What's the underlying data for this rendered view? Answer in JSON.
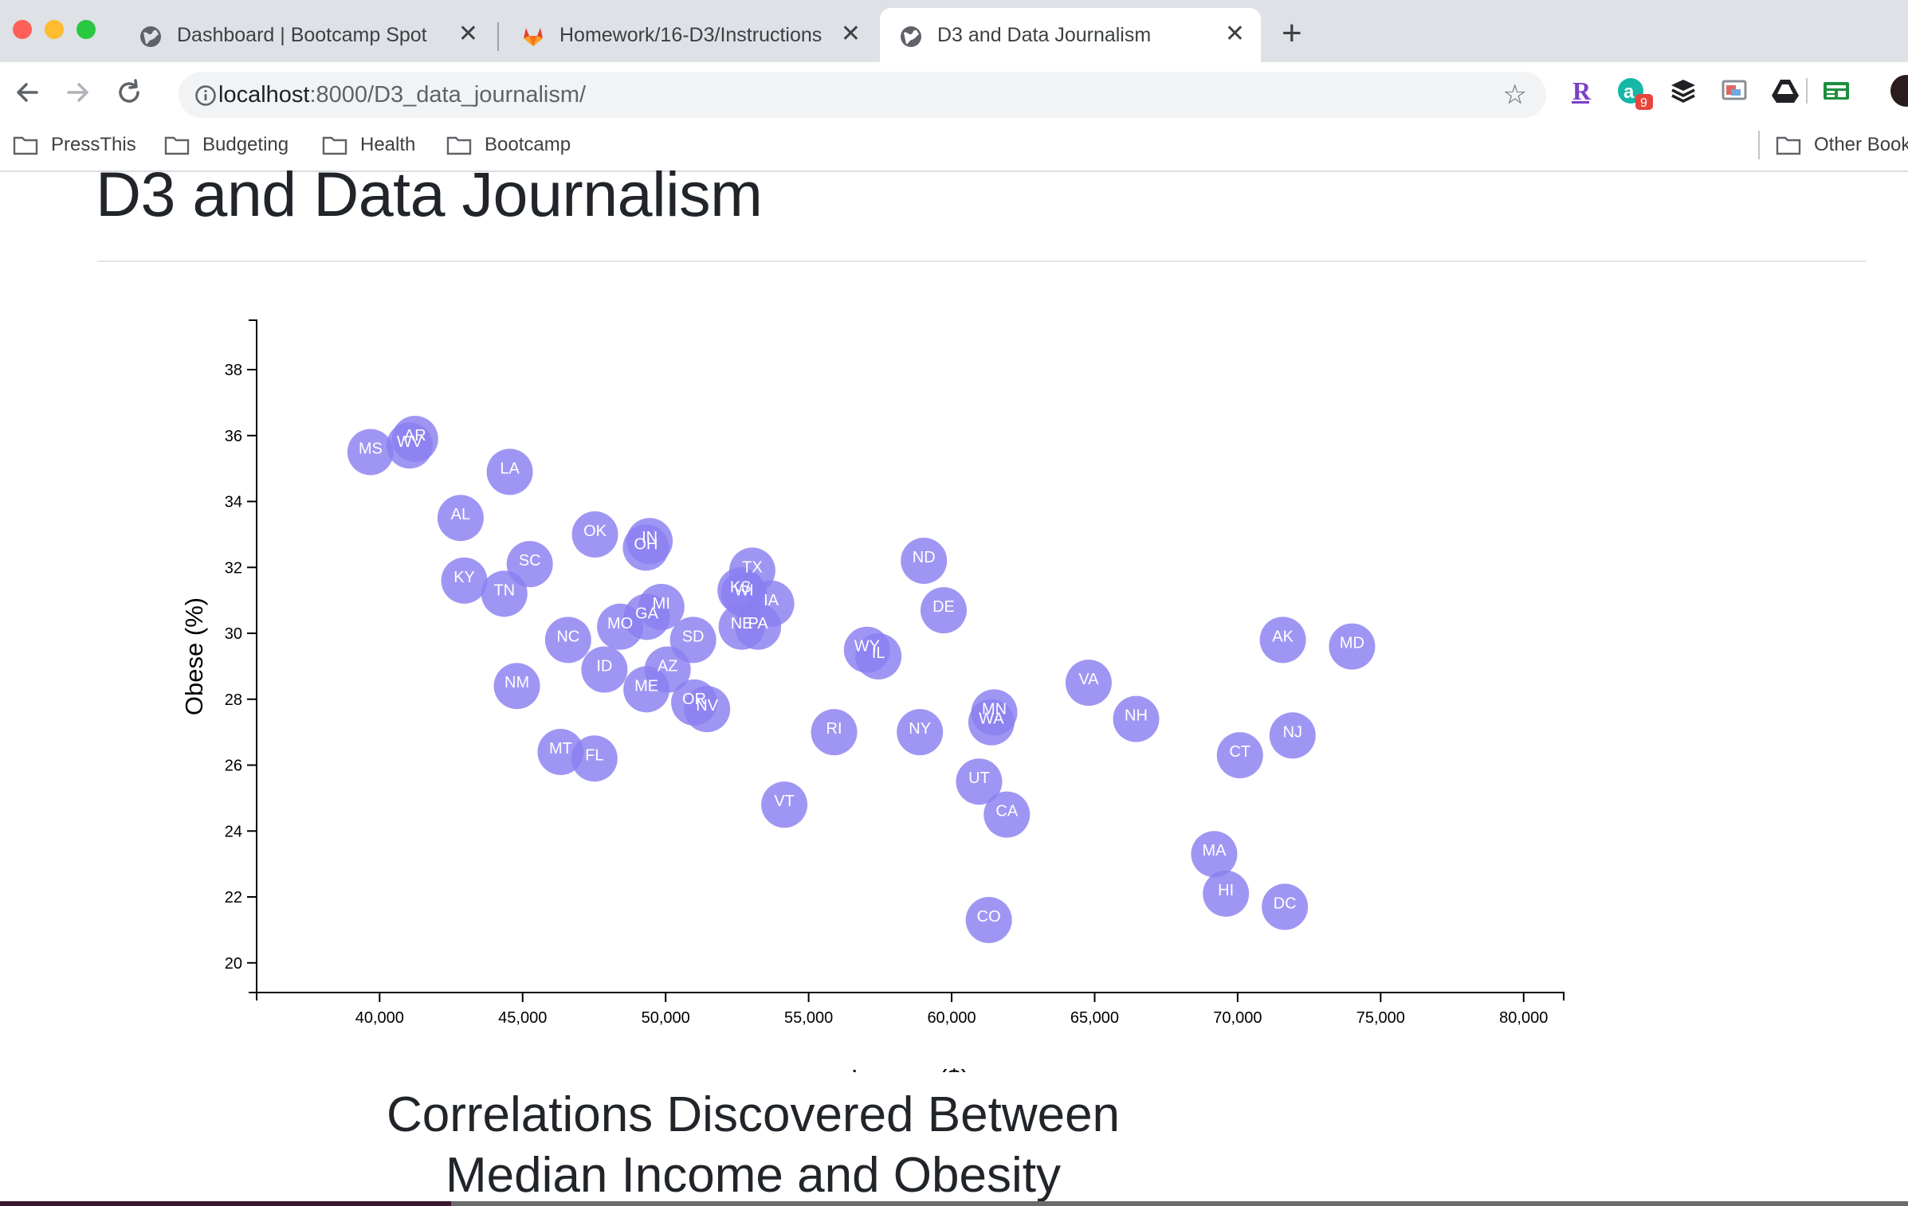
{
  "browser": {
    "tabs": [
      {
        "title": "Dashboard | Bootcamp Spot",
        "icon": "globe-icon",
        "active": false
      },
      {
        "title": "Homework/16-D3/Instructions",
        "icon": "gitlab-icon",
        "active": false
      },
      {
        "title": "D3 and Data Journalism",
        "icon": "globe-icon",
        "active": true
      }
    ],
    "close_glyph": "✕",
    "new_tab_glyph": "+",
    "url_host": "localhost",
    "url_path": ":8000/D3_data_journalism/",
    "star_glyph": "☆",
    "extension_badge": "9",
    "bookmarks": [
      "PressThis",
      "Budgeting",
      "Health",
      "Bootcamp"
    ],
    "other_bookmarks": "Other Bookmarks",
    "colors": {
      "chrome": "#dee1e6",
      "omnibox": "#f1f3f4",
      "bubble": "#8a7ff0"
    }
  },
  "page": {
    "heading": "D3 and Data Journalism",
    "sub_heading_line1": "Correlations Discovered Between",
    "sub_heading_line2": "Median Income and Obesity"
  },
  "chart_data": {
    "type": "scatter",
    "title": "",
    "xlabel": "Income ($)",
    "ylabel": "Obese (%)",
    "xlim": [
      35700,
      81400
    ],
    "ylim": [
      19.1,
      39.5
    ],
    "xticks": [
      40000,
      45000,
      50000,
      55000,
      60000,
      65000,
      70000,
      75000,
      80000
    ],
    "xtick_labels": [
      "40,000",
      "45,000",
      "50,000",
      "55,000",
      "60,000",
      "65,000",
      "70,000",
      "75,000",
      "80,000"
    ],
    "yticks": [
      20,
      22,
      24,
      26,
      28,
      30,
      32,
      34,
      36,
      38
    ],
    "points": [
      {
        "abbr": "MS",
        "x": 39680,
        "y": 35.5
      },
      {
        "abbr": "WV",
        "x": 41050,
        "y": 35.7
      },
      {
        "abbr": "AR",
        "x": 41240,
        "y": 35.9
      },
      {
        "abbr": "LA",
        "x": 44550,
        "y": 34.9
      },
      {
        "abbr": "AL",
        "x": 42830,
        "y": 33.5
      },
      {
        "abbr": "OK",
        "x": 47530,
        "y": 33.0
      },
      {
        "abbr": "OH",
        "x": 49310,
        "y": 32.6
      },
      {
        "abbr": "IN",
        "x": 49440,
        "y": 32.8
      },
      {
        "abbr": "SC",
        "x": 45250,
        "y": 32.1
      },
      {
        "abbr": "KY",
        "x": 42960,
        "y": 31.6
      },
      {
        "abbr": "TN",
        "x": 44360,
        "y": 31.2
      },
      {
        "abbr": "TX",
        "x": 53030,
        "y": 31.9
      },
      {
        "abbr": "KS",
        "x": 52620,
        "y": 31.3
      },
      {
        "abbr": "WI",
        "x": 52740,
        "y": 31.2
      },
      {
        "abbr": "IA",
        "x": 53690,
        "y": 30.9
      },
      {
        "abbr": "ND",
        "x": 59030,
        "y": 32.2
      },
      {
        "abbr": "DE",
        "x": 59720,
        "y": 30.7
      },
      {
        "abbr": "MI",
        "x": 49850,
        "y": 30.8
      },
      {
        "abbr": "GA",
        "x": 49340,
        "y": 30.5
      },
      {
        "abbr": "MO",
        "x": 48410,
        "y": 30.2
      },
      {
        "abbr": "SD",
        "x": 50960,
        "y": 29.8
      },
      {
        "abbr": "NE",
        "x": 52660,
        "y": 30.2
      },
      {
        "abbr": "PA",
        "x": 53230,
        "y": 30.2
      },
      {
        "abbr": "NC",
        "x": 46590,
        "y": 29.8
      },
      {
        "abbr": "WY",
        "x": 57040,
        "y": 29.5
      },
      {
        "abbr": "IL",
        "x": 57440,
        "y": 29.3
      },
      {
        "abbr": "AK",
        "x": 71580,
        "y": 29.8
      },
      {
        "abbr": "MD",
        "x": 74000,
        "y": 29.6
      },
      {
        "abbr": "AZ",
        "x": 50070,
        "y": 28.9
      },
      {
        "abbr": "ID",
        "x": 47860,
        "y": 28.9
      },
      {
        "abbr": "VA",
        "x": 64790,
        "y": 28.5
      },
      {
        "abbr": "NM",
        "x": 44800,
        "y": 28.4
      },
      {
        "abbr": "ME",
        "x": 49330,
        "y": 28.3
      },
      {
        "abbr": "OR",
        "x": 51000,
        "y": 27.9
      },
      {
        "abbr": "NV",
        "x": 51450,
        "y": 27.7
      },
      {
        "abbr": "NH",
        "x": 66450,
        "y": 27.4
      },
      {
        "abbr": "MN",
        "x": 61490,
        "y": 27.6
      },
      {
        "abbr": "WA",
        "x": 61390,
        "y": 27.3
      },
      {
        "abbr": "RI",
        "x": 55890,
        "y": 27.0
      },
      {
        "abbr": "NY",
        "x": 58890,
        "y": 27.0
      },
      {
        "abbr": "NJ",
        "x": 71920,
        "y": 26.9
      },
      {
        "abbr": "CT",
        "x": 70080,
        "y": 26.3
      },
      {
        "abbr": "MT",
        "x": 46330,
        "y": 26.4
      },
      {
        "abbr": "FL",
        "x": 47510,
        "y": 26.2
      },
      {
        "abbr": "UT",
        "x": 60960,
        "y": 25.5
      },
      {
        "abbr": "CA",
        "x": 61930,
        "y": 24.5
      },
      {
        "abbr": "VT",
        "x": 54150,
        "y": 24.8
      },
      {
        "abbr": "MA",
        "x": 69180,
        "y": 23.3
      },
      {
        "abbr": "HI",
        "x": 69590,
        "y": 22.1
      },
      {
        "abbr": "DC",
        "x": 71650,
        "y": 21.7
      },
      {
        "abbr": "CO",
        "x": 61300,
        "y": 21.3
      }
    ]
  }
}
